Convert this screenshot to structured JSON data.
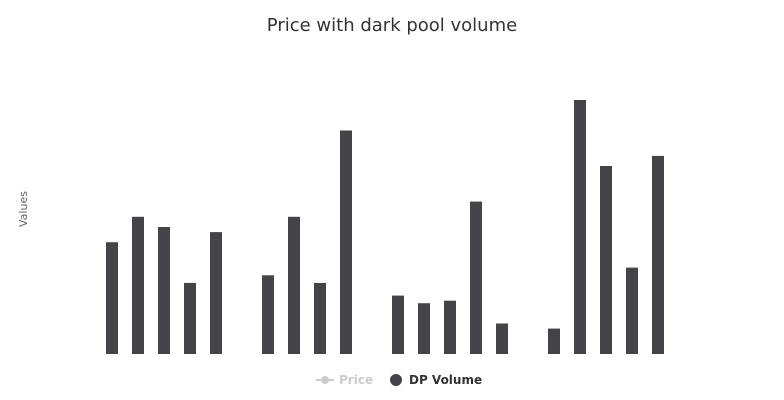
{
  "chart_data": {
    "type": "bar",
    "title": "Price with dark pool volume",
    "ylabel": "Values",
    "xlabel": "",
    "grid": false,
    "legend_position": "bottom",
    "ylim": [
      0,
      100
    ],
    "series": [
      {
        "name": "Price",
        "visible": false,
        "color": "#cccccc",
        "values": []
      },
      {
        "name": "DP Volume",
        "visible": true,
        "color": "#434348",
        "values": [
          44,
          54,
          50,
          28,
          48,
          null,
          31,
          54,
          28,
          88,
          null,
          23,
          20,
          21,
          60,
          12,
          null,
          10,
          100,
          74,
          34,
          78
        ]
      }
    ]
  }
}
